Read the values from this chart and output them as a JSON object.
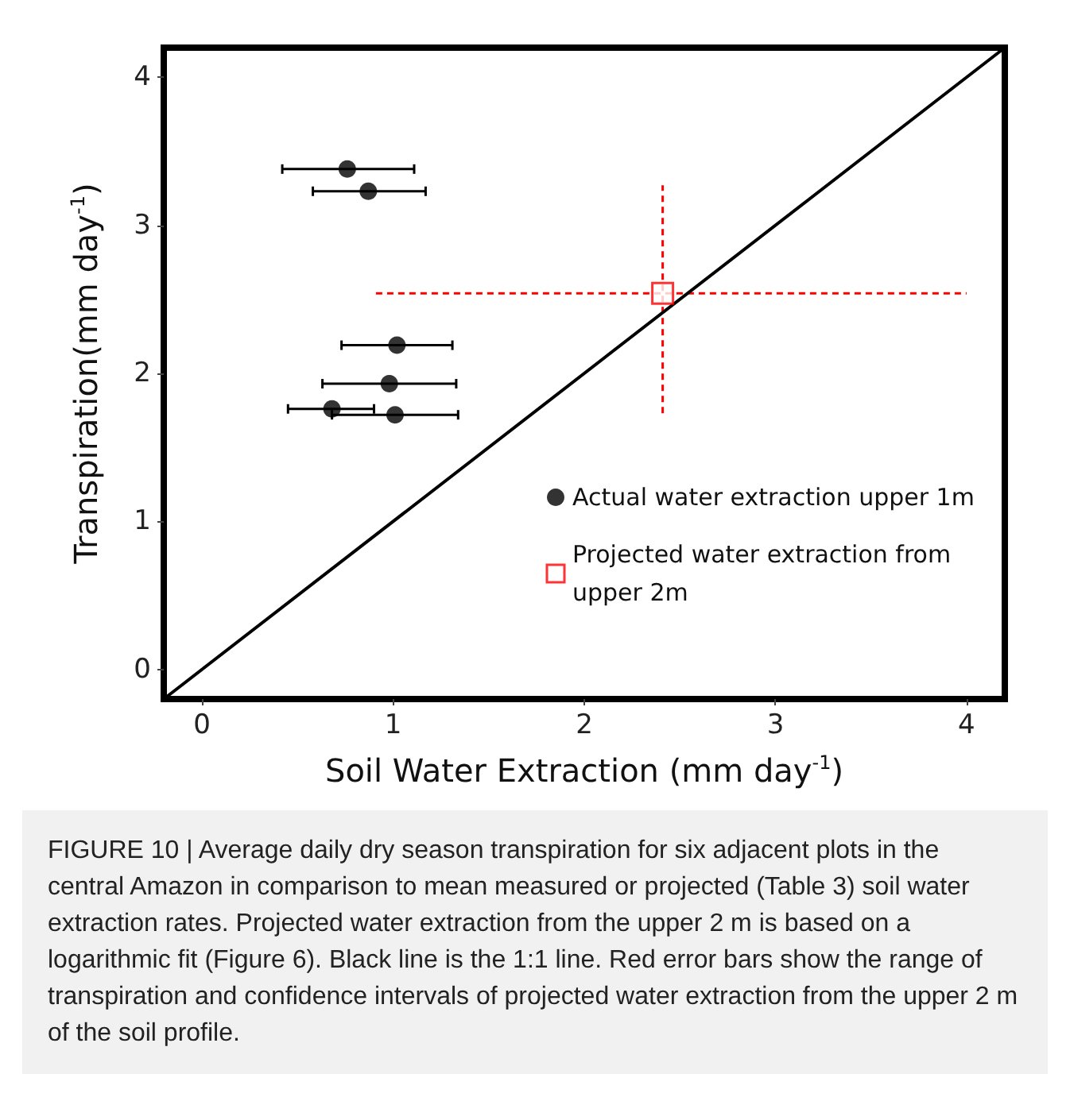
{
  "chart_data": {
    "type": "scatter",
    "xlabel": "Soil Water Extraction (mm day$^{-1}$)",
    "ylabel": "Transpiration(mm day$^{-1}$)",
    "xlim": [
      -0.2,
      4.2
    ],
    "ylim": [
      -0.2,
      4.2
    ],
    "xticks": [
      0,
      1,
      2,
      3,
      4
    ],
    "yticks": [
      0,
      1,
      2,
      3,
      4
    ],
    "grid": false,
    "legend": "bottom right",
    "series": [
      {
        "name": "Actual water extraction upper 1m",
        "color": "#000000",
        "marker": "circle",
        "x": [
          0.76,
          0.87,
          1.02,
          0.98,
          0.68,
          1.01
        ],
        "values": [
          3.38,
          3.23,
          2.19,
          1.93,
          1.76,
          1.72
        ],
        "xerrors": [
          [
            0.42,
            1.11
          ],
          [
            0.58,
            1.17
          ],
          [
            0.73,
            1.31
          ],
          [
            0.63,
            1.33
          ],
          [
            0.45,
            0.9
          ],
          [
            0.68,
            1.34
          ]
        ]
      },
      {
        "name": "Projected water extraction from upper 2m",
        "color": "#ff0000",
        "marker": "square",
        "line_style": "dashed",
        "x": [
          2.41
        ],
        "values": [
          2.54
        ],
        "xerrors": [
          [
            0.91,
            4.0
          ]
        ],
        "errors": [
          [
            1.73,
            3.27
          ]
        ]
      },
      {
        "type": "line",
        "color": "#000000",
        "marker": "none",
        "line_style": "solid",
        "x": [
          -0.2,
          4.2
        ],
        "values": [
          -0.2,
          4.2
        ]
      }
    ],
    "annotations": [
      "FIGURE 10 | Average daily dry season transpiration for six adjacent plots in the central Amazon in comparison to mean measured or projected (Table 3) soil water extraction rates. Projected water extraction from the upper 2 m is based on a logarithmic fit (Figure 6). Black line is the 1:1 line. Red error bars show the range of transpiration and confidence intervals of projected water extraction from the upper 2 m of the soil profile."
    ]
  }
}
